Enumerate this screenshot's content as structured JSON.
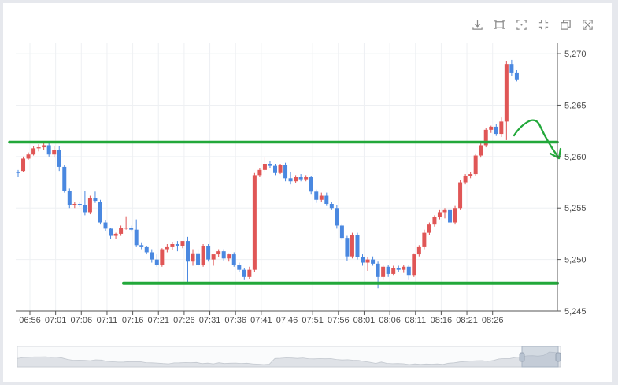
{
  "toolbar": {
    "icons": [
      "download-icon",
      "fit-content-icon",
      "expand-icon",
      "collapse-icon",
      "crop-icon",
      "fullscreen-icon"
    ]
  },
  "colors": {
    "up": "#e05656",
    "down": "#4a88e0",
    "annotation": "#22a83a",
    "grid": "#eef0f3"
  },
  "chart_data": {
    "type": "candlestick",
    "title": "",
    "ylim": [
      5245,
      5271
    ],
    "yticks": [
      "5,270",
      "5,265",
      "5,260",
      "5,255",
      "5,250",
      "5,245"
    ],
    "ytick_values": [
      5270,
      5265,
      5260,
      5255,
      5250,
      5245
    ],
    "xticks": [
      "06:56",
      "07:01",
      "07:06",
      "07:11",
      "07:16",
      "07:21",
      "07:26",
      "07:31",
      "07:36",
      "07:41",
      "07:46",
      "07:51",
      "07:56",
      "08:01",
      "08:06",
      "08:11",
      "08:16",
      "08:21",
      "08:26"
    ],
    "interval_minutes": 1,
    "candles": [
      [
        5258.5,
        5258.7,
        5258.0,
        5258.4
      ],
      [
        5258.6,
        5260.0,
        5258.5,
        5259.8
      ],
      [
        5259.8,
        5260.4,
        5259.7,
        5260.2
      ],
      [
        5260.2,
        5261.0,
        5260.1,
        5260.8
      ],
      [
        5260.8,
        5261.2,
        5260.5,
        5260.9
      ],
      [
        5260.9,
        5261.4,
        5260.6,
        5261.1
      ],
      [
        5261.1,
        5261.3,
        5260.0,
        5260.2
      ],
      [
        5260.2,
        5261.0,
        5259.9,
        5260.6
      ],
      [
        5260.6,
        5261.0,
        5258.6,
        5259.0
      ],
      [
        5259.0,
        5259.2,
        5256.5,
        5256.7
      ],
      [
        5256.7,
        5256.9,
        5255.0,
        5255.3
      ],
      [
        5255.3,
        5255.6,
        5255.0,
        5255.4
      ],
      [
        5255.4,
        5255.6,
        5255.1,
        5255.3
      ],
      [
        5255.3,
        5256.7,
        5254.3,
        5254.6
      ],
      [
        5254.6,
        5256.2,
        5254.4,
        5256.0
      ],
      [
        5256.0,
        5256.6,
        5255.5,
        5255.7
      ],
      [
        5255.6,
        5255.8,
        5253.4,
        5253.6
      ],
      [
        5253.6,
        5253.8,
        5252.8,
        5253.0
      ],
      [
        5253.0,
        5253.1,
        5252.0,
        5252.3
      ],
      [
        5252.3,
        5252.6,
        5252.0,
        5252.5
      ],
      [
        5252.5,
        5253.3,
        5252.3,
        5253.1
      ],
      [
        5253.1,
        5254.2,
        5252.9,
        5253.1
      ],
      [
        5253.1,
        5253.3,
        5252.7,
        5252.9
      ],
      [
        5252.9,
        5253.9,
        5251.2,
        5251.4
      ],
      [
        5251.4,
        5251.6,
        5251.0,
        5251.2
      ],
      [
        5251.2,
        5251.3,
        5250.5,
        5250.7
      ],
      [
        5250.7,
        5251.0,
        5249.7,
        5250.0
      ],
      [
        5250.0,
        5250.5,
        5249.3,
        5249.5
      ],
      [
        5249.5,
        5251.1,
        5249.3,
        5251.0
      ],
      [
        5251.0,
        5251.5,
        5250.7,
        5251.2
      ],
      [
        5251.2,
        5251.7,
        5250.9,
        5251.5
      ],
      [
        5251.5,
        5251.8,
        5250.8,
        5251.3
      ],
      [
        5251.3,
        5251.6,
        5251.1,
        5251.8
      ],
      [
        5251.8,
        5252.2,
        5247.8,
        5249.8
      ],
      [
        5249.8,
        5251.0,
        5249.4,
        5250.6
      ],
      [
        5250.6,
        5251.0,
        5249.3,
        5249.5
      ],
      [
        5249.5,
        5251.5,
        5249.3,
        5251.3
      ],
      [
        5251.3,
        5251.5,
        5249.8,
        5250.0
      ],
      [
        5250.0,
        5250.4,
        5249.4,
        5250.5
      ],
      [
        5250.5,
        5251.0,
        5250.2,
        5250.8
      ],
      [
        5250.8,
        5251.0,
        5249.9,
        5250.1
      ],
      [
        5250.1,
        5250.6,
        5249.8,
        5250.5
      ],
      [
        5250.5,
        5250.7,
        5249.3,
        5249.5
      ],
      [
        5249.5,
        5249.7,
        5248.8,
        5249.0
      ],
      [
        5249.0,
        5249.2,
        5248.0,
        5248.3
      ],
      [
        5248.3,
        5249.3,
        5248.1,
        5249.0
      ],
      [
        5249.0,
        5258.4,
        5248.8,
        5258.2
      ],
      [
        5258.2,
        5258.9,
        5258.0,
        5258.7
      ],
      [
        5258.7,
        5259.9,
        5258.5,
        5259.3
      ],
      [
        5259.3,
        5259.6,
        5258.9,
        5259.1
      ],
      [
        5259.1,
        5259.3,
        5258.2,
        5258.4
      ],
      [
        5258.4,
        5259.3,
        5258.3,
        5259.2
      ],
      [
        5259.2,
        5259.4,
        5257.6,
        5257.9
      ],
      [
        5257.9,
        5258.5,
        5257.3,
        5257.6
      ],
      [
        5257.6,
        5258.2,
        5257.4,
        5258.0
      ],
      [
        5258.0,
        5258.3,
        5257.6,
        5257.8
      ],
      [
        5257.8,
        5258.2,
        5257.6,
        5258.0
      ],
      [
        5258.0,
        5258.1,
        5256.3,
        5256.6
      ],
      [
        5256.6,
        5256.8,
        5255.5,
        5255.8
      ],
      [
        5255.8,
        5256.5,
        5255.6,
        5256.2
      ],
      [
        5256.2,
        5256.5,
        5255.2,
        5255.4
      ],
      [
        5255.4,
        5255.6,
        5254.8,
        5255.0
      ],
      [
        5255.0,
        5255.3,
        5253.0,
        5253.3
      ],
      [
        5253.3,
        5253.5,
        5251.9,
        5252.1
      ],
      [
        5252.1,
        5252.3,
        5249.9,
        5250.3
      ],
      [
        5250.3,
        5252.6,
        5250.1,
        5252.4
      ],
      [
        5252.4,
        5252.6,
        5250.0,
        5250.2
      ],
      [
        5250.2,
        5250.5,
        5249.4,
        5249.7
      ],
      [
        5249.7,
        5250.2,
        5248.9,
        5250.0
      ],
      [
        5250.0,
        5250.3,
        5249.4,
        5249.6
      ],
      [
        5249.6,
        5249.8,
        5247.2,
        5248.3
      ],
      [
        5248.3,
        5249.5,
        5248.0,
        5249.3
      ],
      [
        5249.3,
        5249.5,
        5248.3,
        5248.6
      ],
      [
        5248.6,
        5249.4,
        5248.5,
        5249.2
      ],
      [
        5249.2,
        5249.4,
        5248.8,
        5249.0
      ],
      [
        5249.0,
        5249.5,
        5248.7,
        5249.3
      ],
      [
        5249.3,
        5249.5,
        5248.0,
        5248.5
      ],
      [
        5248.5,
        5250.6,
        5248.3,
        5250.5
      ],
      [
        5250.5,
        5251.4,
        5250.3,
        5251.2
      ],
      [
        5251.2,
        5252.9,
        5251.0,
        5252.6
      ],
      [
        5252.6,
        5253.6,
        5252.4,
        5253.4
      ],
      [
        5253.4,
        5254.3,
        5253.2,
        5254.1
      ],
      [
        5254.1,
        5254.8,
        5253.9,
        5254.6
      ],
      [
        5254.6,
        5255.0,
        5254.0,
        5254.8
      ],
      [
        5254.8,
        5255.0,
        5253.4,
        5253.6
      ],
      [
        5253.6,
        5255.2,
        5253.4,
        5255.0
      ],
      [
        5255.0,
        5257.7,
        5254.8,
        5257.5
      ],
      [
        5257.5,
        5258.3,
        5257.3,
        5258.1
      ],
      [
        5258.1,
        5258.5,
        5257.9,
        5258.3
      ],
      [
        5258.3,
        5260.3,
        5258.1,
        5260.1
      ],
      [
        5260.1,
        5261.3,
        5259.9,
        5261.1
      ],
      [
        5261.1,
        5262.8,
        5260.9,
        5262.6
      ],
      [
        5262.6,
        5263.0,
        5262.3,
        5262.9
      ],
      [
        5262.9,
        5263.2,
        5262.0,
        5262.2
      ],
      [
        5262.2,
        5263.8,
        5261.9,
        5263.4
      ],
      [
        5263.4,
        5269.3,
        5261.6,
        5269.0
      ],
      [
        5269.0,
        5269.4,
        5267.8,
        5268.1
      ],
      [
        5268.1,
        5268.4,
        5267.3,
        5267.5
      ]
    ],
    "horizontal_levels": [
      5261.4,
      5247.7
    ],
    "annotation": "green hand-drawn arrow pointing down from the upper level"
  }
}
